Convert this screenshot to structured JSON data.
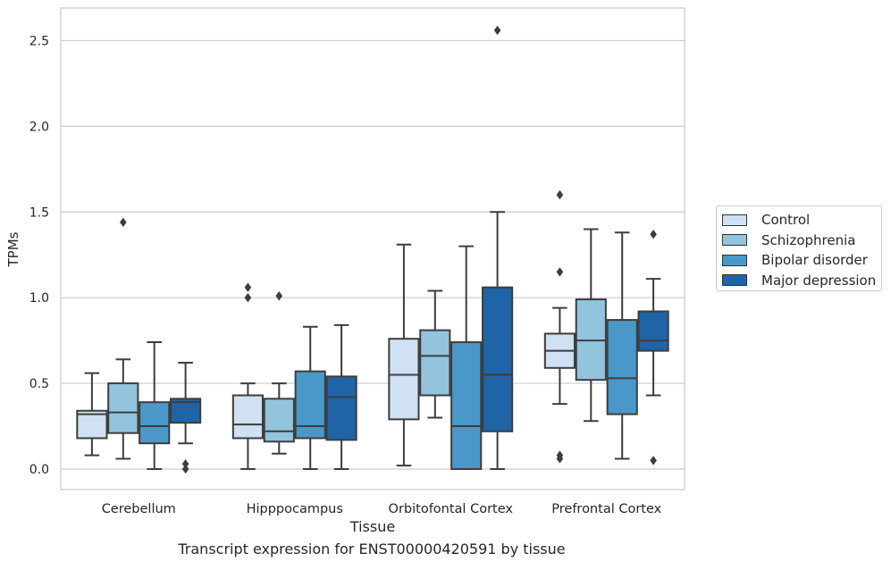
{
  "chart_data": {
    "type": "box",
    "xlabel": "Tissue",
    "ylabel": "TPMs",
    "caption": "Transcript expression for ENST00000420591 by tissue",
    "ylim": [
      -0.12,
      2.69
    ],
    "yticks": [
      0.0,
      0.5,
      1.0,
      1.5,
      2.0,
      2.5
    ],
    "ytick_labels": [
      "0.0",
      "0.5",
      "1.0",
      "1.5",
      "2.0",
      "2.5"
    ],
    "grid": "horizontal",
    "legend_placement": "outside right",
    "categories": [
      "Cerebellum",
      "Hipppocampus",
      "Orbitofontal Cortex",
      "Prefrontal Cortex"
    ],
    "series": [
      {
        "name": "Control",
        "color": "#cfe1f2",
        "boxes": [
          {
            "whislo": 0.08,
            "q1": 0.18,
            "med": 0.32,
            "q3": 0.34,
            "whishi": 0.56,
            "fliers": []
          },
          {
            "whislo": 0.0,
            "q1": 0.18,
            "med": 0.26,
            "q3": 0.43,
            "whishi": 0.5,
            "fliers": [
              1.0,
              1.06
            ]
          },
          {
            "whislo": 0.02,
            "q1": 0.29,
            "med": 0.55,
            "q3": 0.76,
            "whishi": 1.31,
            "fliers": []
          },
          {
            "whislo": 0.38,
            "q1": 0.59,
            "med": 0.69,
            "q3": 0.79,
            "whishi": 0.94,
            "fliers": [
              0.06,
              0.08,
              1.15,
              1.6
            ]
          }
        ]
      },
      {
        "name": "Schizophrenia",
        "color": "#93c4de",
        "boxes": [
          {
            "whislo": 0.06,
            "q1": 0.21,
            "med": 0.33,
            "q3": 0.5,
            "whishi": 0.64,
            "fliers": [
              1.44
            ]
          },
          {
            "whislo": 0.09,
            "q1": 0.16,
            "med": 0.22,
            "q3": 0.41,
            "whishi": 0.5,
            "fliers": [
              1.01
            ]
          },
          {
            "whislo": 0.3,
            "q1": 0.43,
            "med": 0.66,
            "q3": 0.81,
            "whishi": 1.04,
            "fliers": []
          },
          {
            "whislo": 0.28,
            "q1": 0.52,
            "med": 0.75,
            "q3": 0.99,
            "whishi": 1.4,
            "fliers": []
          }
        ]
      },
      {
        "name": "Bipolar disorder",
        "color": "#4a98c9",
        "boxes": [
          {
            "whislo": 0.0,
            "q1": 0.15,
            "med": 0.25,
            "q3": 0.39,
            "whishi": 0.74,
            "fliers": []
          },
          {
            "whislo": 0.0,
            "q1": 0.18,
            "med": 0.25,
            "q3": 0.57,
            "whishi": 0.83,
            "fliers": []
          },
          {
            "whislo": 0.0,
            "q1": 0.0,
            "med": 0.25,
            "q3": 0.74,
            "whishi": 1.3,
            "fliers": []
          },
          {
            "whislo": 0.06,
            "q1": 0.32,
            "med": 0.53,
            "q3": 0.87,
            "whishi": 1.38,
            "fliers": []
          }
        ]
      },
      {
        "name": "Major depression",
        "color": "#1f64a6",
        "boxes": [
          {
            "whislo": 0.15,
            "q1": 0.27,
            "med": 0.39,
            "q3": 0.41,
            "whishi": 0.62,
            "fliers": [
              0.0,
              0.03
            ]
          },
          {
            "whislo": 0.0,
            "q1": 0.17,
            "med": 0.42,
            "q3": 0.54,
            "whishi": 0.84,
            "fliers": []
          },
          {
            "whislo": 0.0,
            "q1": 0.22,
            "med": 0.55,
            "q3": 1.06,
            "whishi": 1.5,
            "fliers": [
              2.56
            ]
          },
          {
            "whislo": 0.43,
            "q1": 0.69,
            "med": 0.75,
            "q3": 0.92,
            "whishi": 1.11,
            "fliers": [
              0.05,
              1.37
            ]
          }
        ]
      }
    ]
  }
}
